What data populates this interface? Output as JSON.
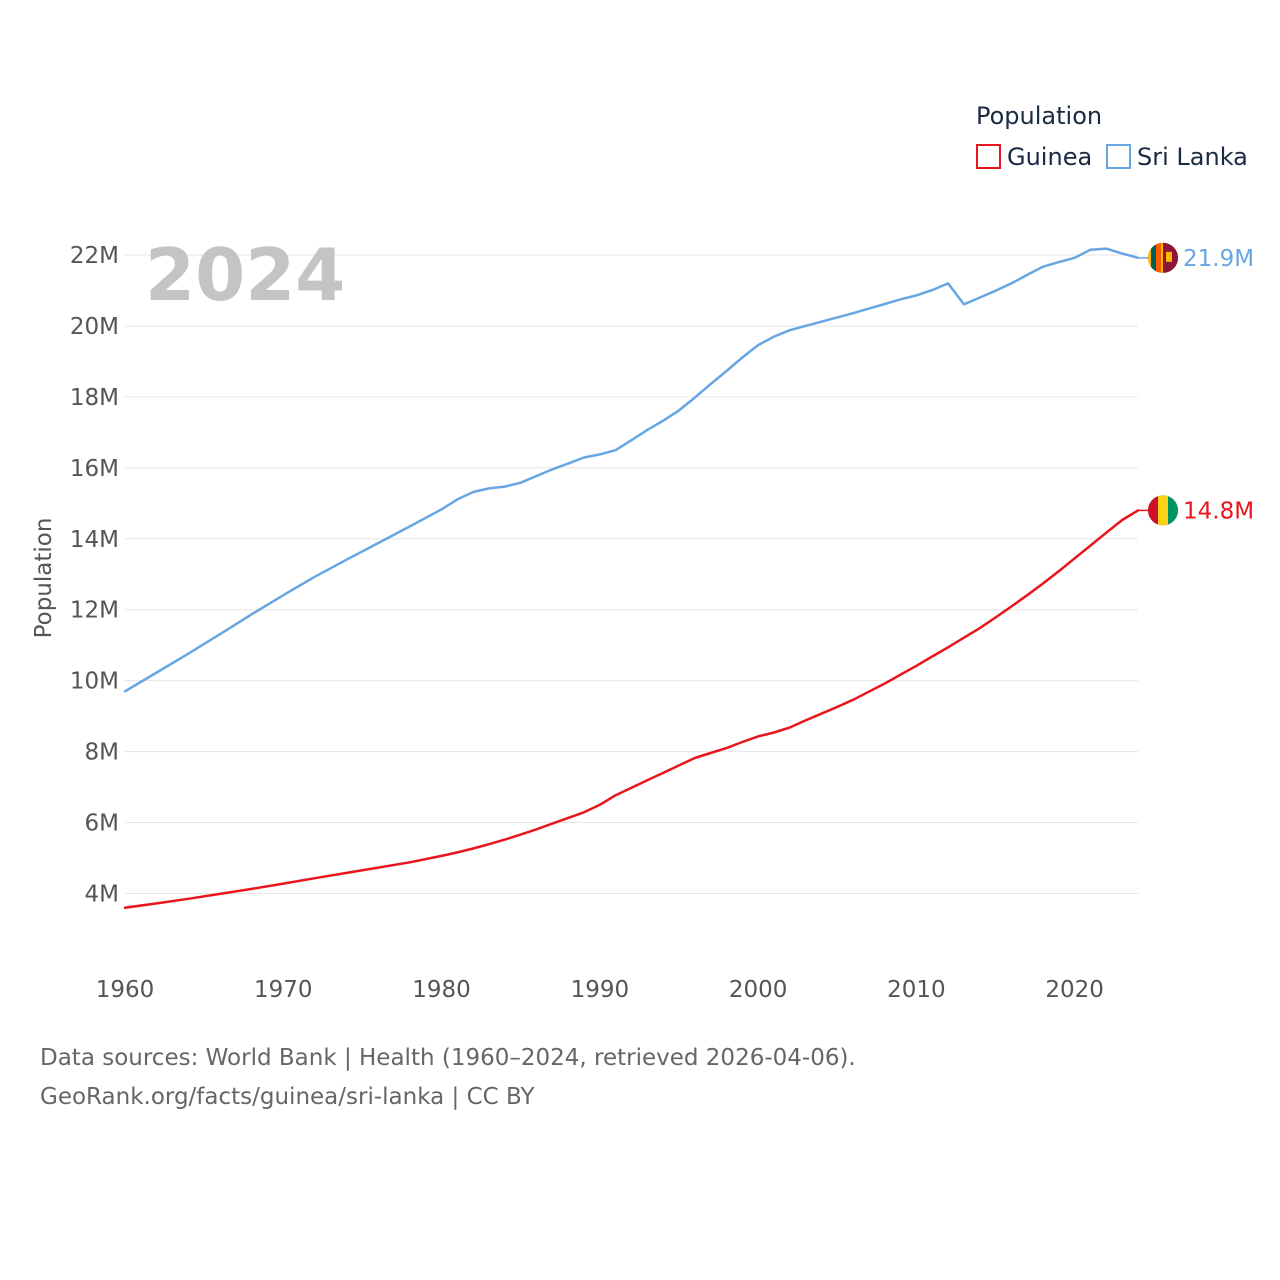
{
  "chart_data": {
    "type": "line",
    "title": "",
    "year_label": "2024",
    "xlabel": "",
    "ylabel": "Population",
    "xlim": [
      1960,
      2024
    ],
    "ylim": [
      2700000,
      23000000
    ],
    "x_ticks": [
      1960,
      1970,
      1980,
      1990,
      2000,
      2010,
      2020
    ],
    "x_tick_labels": [
      "1960",
      "1970",
      "1980",
      "1990",
      "2000",
      "2010",
      "2020"
    ],
    "y_ticks": [
      4000000,
      6000000,
      8000000,
      10000000,
      12000000,
      14000000,
      16000000,
      18000000,
      20000000,
      22000000
    ],
    "y_tick_labels": [
      "4M",
      "6M",
      "8M",
      "10M",
      "12M",
      "14M",
      "16M",
      "18M",
      "20M",
      "22M"
    ],
    "grid": true,
    "legend": {
      "title": "Population",
      "placement": "top-right"
    },
    "series": [
      {
        "name": "Guinea",
        "color": "#e8161c",
        "end_label": "14.8M",
        "flag_colors": [
          "#ce1126",
          "#fcd116",
          "#009460"
        ],
        "x": [
          1960,
          1962,
          1964,
          1966,
          1968,
          1970,
          1972,
          1974,
          1976,
          1978,
          1980,
          1981,
          1982,
          1983,
          1984,
          1985,
          1986,
          1987,
          1988,
          1989,
          1990,
          1991,
          1992,
          1993,
          1994,
          1995,
          1996,
          1997,
          1998,
          1999,
          2000,
          2001,
          2002,
          2003,
          2004,
          2005,
          2006,
          2007,
          2008,
          2009,
          2010,
          2011,
          2012,
          2013,
          2014,
          2015,
          2016,
          2017,
          2018,
          2019,
          2020,
          2021,
          2022,
          2023,
          2024
        ],
        "y": [
          3600000,
          3720000,
          3850000,
          3990000,
          4130000,
          4280000,
          4430000,
          4580000,
          4730000,
          4880000,
          5060000,
          5160000,
          5270000,
          5390000,
          5520000,
          5660000,
          5810000,
          5970000,
          6130000,
          6290000,
          6500000,
          6770000,
          6980000,
          7190000,
          7400000,
          7610000,
          7820000,
          7960000,
          8100000,
          8270000,
          8430000,
          8540000,
          8680000,
          8880000,
          9070000,
          9260000,
          9460000,
          9690000,
          9920000,
          10170000,
          10420000,
          10680000,
          10940000,
          11210000,
          11480000,
          11780000,
          12090000,
          12410000,
          12740000,
          13090000,
          13450000,
          13810000,
          14170000,
          14530000,
          14800000
        ]
      },
      {
        "name": "Sri Lanka",
        "color": "#66a6e2",
        "end_label": "21.9M",
        "flag_colors": [
          "#ffb700",
          "#005f56",
          "#ff5b00",
          "#8d153a"
        ],
        "x": [
          1960,
          1962,
          1964,
          1966,
          1968,
          1970,
          1972,
          1974,
          1976,
          1978,
          1980,
          1981,
          1982,
          1983,
          1984,
          1985,
          1986,
          1987,
          1988,
          1989,
          1990,
          1991,
          1992,
          1993,
          1994,
          1995,
          1996,
          1997,
          1998,
          1999,
          2000,
          2001,
          2002,
          2003,
          2004,
          2005,
          2006,
          2007,
          2008,
          2009,
          2010,
          2011,
          2012,
          2013,
          2014,
          2015,
          2016,
          2017,
          2018,
          2019,
          2020,
          2021,
          2022,
          2023,
          2024
        ],
        "y": [
          9700000,
          10230000,
          10760000,
          11310000,
          11870000,
          12410000,
          12930000,
          13410000,
          13880000,
          14350000,
          14830000,
          15110000,
          15320000,
          15420000,
          15470000,
          15580000,
          15770000,
          15960000,
          16120000,
          16290000,
          16380000,
          16500000,
          16780000,
          17070000,
          17330000,
          17620000,
          17980000,
          18360000,
          18730000,
          19110000,
          19460000,
          19700000,
          19880000,
          20000000,
          20120000,
          20240000,
          20360000,
          20490000,
          20620000,
          20750000,
          20860000,
          21010000,
          21200000,
          20610000,
          20800000,
          20990000,
          21200000,
          21440000,
          21670000,
          21800000,
          21920000,
          22150000,
          22180000,
          22040000,
          21920000
        ]
      }
    ]
  },
  "footer": {
    "sources": "Data sources: World Bank | Health (1960–2024, retrieved 2026-04-06).",
    "site": "GeoRank.org/facts/guinea/sri-lanka | CC BY"
  }
}
